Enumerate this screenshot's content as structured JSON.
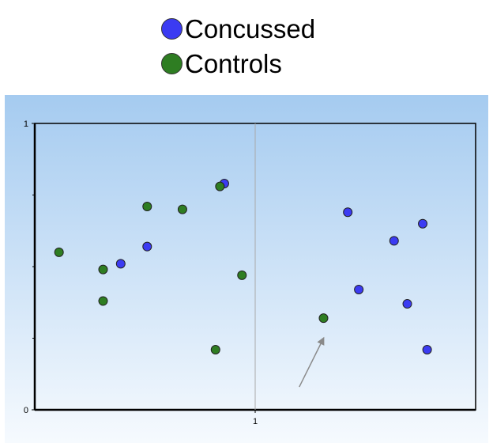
{
  "legend": [
    {
      "label": "Concussed",
      "color": "#3b3bf2"
    },
    {
      "label": "Controls",
      "color": "#2e7d22"
    }
  ],
  "chart_data": {
    "type": "scatter",
    "xlim": [
      0,
      2
    ],
    "ylim": [
      0,
      1
    ],
    "x_ticks": [
      {
        "value": 1,
        "label": "1"
      }
    ],
    "y_ticks": [
      {
        "value": 0,
        "label": "0"
      },
      {
        "value": 1,
        "label": "1"
      }
    ],
    "vertical_reference_line": 1,
    "series": [
      {
        "name": "Concussed",
        "color": "#3b3bf2",
        "points": [
          {
            "x": 0.86,
            "y": 0.79
          },
          {
            "x": 0.51,
            "y": 0.57
          },
          {
            "x": 0.39,
            "y": 0.51
          },
          {
            "x": 1.42,
            "y": 0.69
          },
          {
            "x": 1.63,
            "y": 0.59
          },
          {
            "x": 1.76,
            "y": 0.65
          },
          {
            "x": 1.47,
            "y": 0.42
          },
          {
            "x": 1.69,
            "y": 0.37
          },
          {
            "x": 1.78,
            "y": 0.21
          }
        ]
      },
      {
        "name": "Controls",
        "color": "#2e7d22",
        "points": [
          {
            "x": 0.84,
            "y": 0.78
          },
          {
            "x": 0.51,
            "y": 0.71
          },
          {
            "x": 0.67,
            "y": 0.7
          },
          {
            "x": 0.11,
            "y": 0.55
          },
          {
            "x": 0.31,
            "y": 0.49
          },
          {
            "x": 0.94,
            "y": 0.47
          },
          {
            "x": 0.31,
            "y": 0.38
          },
          {
            "x": 0.82,
            "y": 0.21
          },
          {
            "x": 1.31,
            "y": 0.32
          }
        ]
      }
    ],
    "annotations": [
      {
        "type": "arrow",
        "from": [
          1.2,
          0.08
        ],
        "to": [
          1.31,
          0.25
        ]
      }
    ],
    "grid": false,
    "background": {
      "top": "#a5cbf0",
      "bottom": "#f6fafe"
    }
  }
}
